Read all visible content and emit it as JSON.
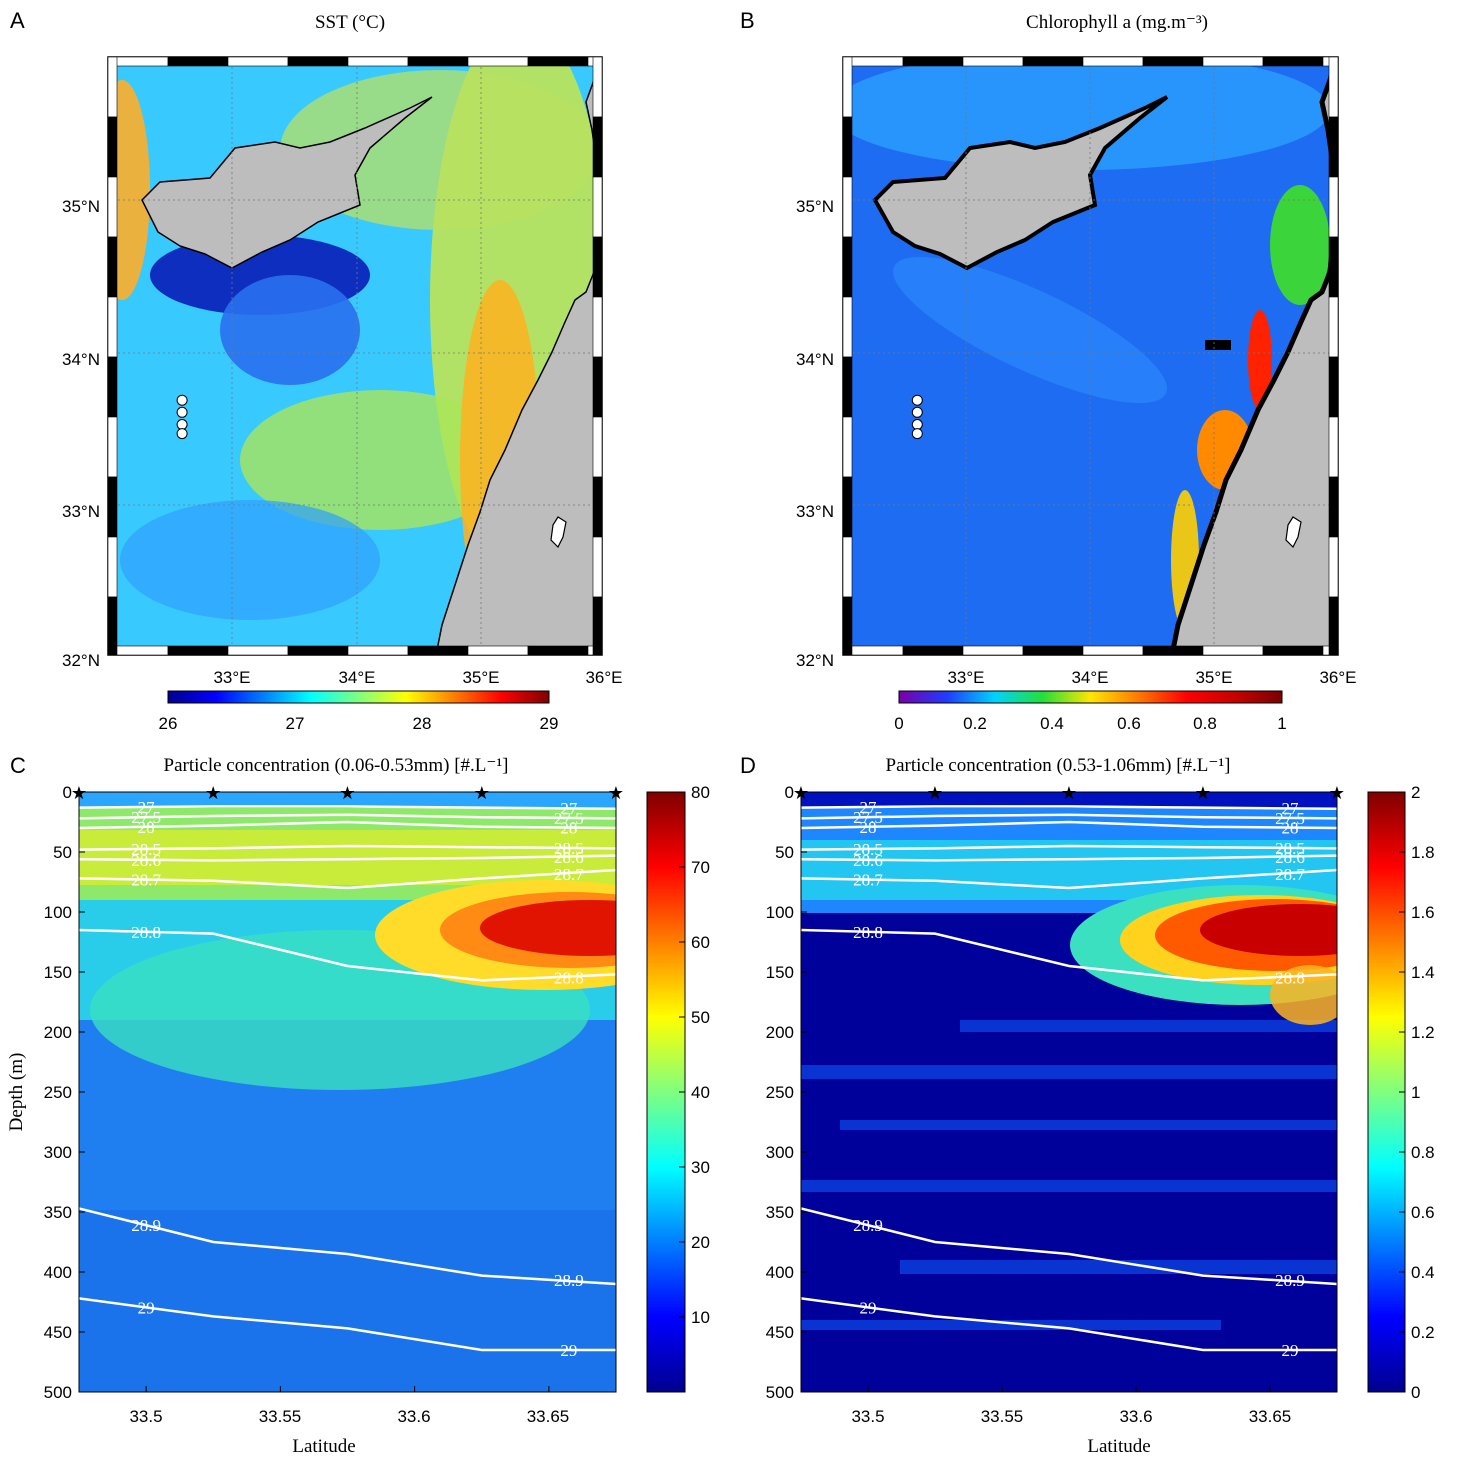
{
  "colors": {
    "land": "#bdbdbd",
    "contour_line": "#ffffff",
    "jet": [
      "#00008f",
      "#0000ff",
      "#007fff",
      "#00ffff",
      "#7fff7f",
      "#ffff00",
      "#ff7f00",
      "#ff0000",
      "#7f0000"
    ],
    "chl_scale": [
      "#7a00a8",
      "#1f3cff",
      "#00d2ff",
      "#22e038",
      "#ffe600",
      "#ff7a00",
      "#ff0000",
      "#c80000",
      "#7a0000"
    ]
  },
  "panels": {
    "A": {
      "letter": "A",
      "title": "SST (°C)",
      "y_ticks": [
        "35°N",
        "34°N",
        "33°N",
        "32°N"
      ],
      "x_ticks": [
        "33°E",
        "34°E",
        "35°E",
        "36°E"
      ],
      "colorbar": {
        "ticks": [
          "26",
          "27",
          "28",
          "29"
        ],
        "range": [
          26,
          29
        ]
      }
    },
    "B": {
      "letter": "B",
      "title": "Chlorophyll a (mg.m⁻³)",
      "y_ticks": [
        "35°N",
        "34°N",
        "33°N",
        "32°N"
      ],
      "x_ticks": [
        "33°E",
        "34°E",
        "35°E",
        "36°E"
      ],
      "colorbar": {
        "ticks": [
          "0",
          "0.2",
          "0.4",
          "0.6",
          "0.8",
          "1"
        ],
        "range": [
          0,
          1
        ]
      }
    },
    "C": {
      "letter": "C",
      "title": "Particle concentration (0.06-0.53mm) [#.L⁻¹]",
      "ylabel": "Depth (m)",
      "xlabel": "Latitude",
      "y_ticks": [
        "0",
        "50",
        "100",
        "150",
        "200",
        "250",
        "300",
        "350",
        "400",
        "450",
        "500"
      ],
      "x_ticks": [
        "33.5",
        "33.55",
        "33.6",
        "33.65"
      ],
      "colorbar_ticks": [
        "80",
        "70",
        "60",
        "50",
        "40",
        "30",
        "20",
        "10"
      ],
      "contour_labels": [
        "27",
        "27.5",
        "28",
        "28.5",
        "28.6",
        "28.7",
        "28.8",
        "28.9",
        "29"
      ]
    },
    "D": {
      "letter": "D",
      "title": "Particle concentration (0.53-1.06mm) [#.L⁻¹]",
      "xlabel": "Latitude",
      "y_ticks": [
        "0",
        "50",
        "100",
        "150",
        "200",
        "250",
        "300",
        "350",
        "400",
        "450",
        "500"
      ],
      "x_ticks": [
        "33.5",
        "33.55",
        "33.6",
        "33.65"
      ],
      "colorbar_ticks": [
        "2",
        "1.8",
        "1.6",
        "1.4",
        "1.2",
        "1",
        "0.8",
        "0.6",
        "0.4",
        "0.2",
        "0"
      ],
      "contour_labels": [
        "27",
        "27.5",
        "28",
        "28.5",
        "28.6",
        "28.7",
        "28.8",
        "28.9",
        "29"
      ]
    }
  },
  "chart_data": [
    {
      "panel": "A",
      "type": "heatmap",
      "title": "SST (°C)",
      "xlim": [
        32,
        36
      ],
      "ylim": [
        32,
        36
      ],
      "color_range": [
        26,
        29
      ],
      "stations": {
        "lon": 32.6,
        "lat": [
          33.68,
          33.6,
          33.52,
          33.46
        ]
      }
    },
    {
      "panel": "B",
      "type": "heatmap",
      "title": "Chlorophyll a (mg.m-3)",
      "xlim": [
        32,
        36
      ],
      "ylim": [
        32,
        36
      ],
      "color_range": [
        0,
        1
      ],
      "stations": {
        "lon": 32.6,
        "lat": [
          33.68,
          33.6,
          33.52,
          33.46
        ]
      }
    },
    {
      "panel": "C",
      "type": "heatmap",
      "title": "Particle concentration (0.06-0.53mm) [#.L-1]",
      "xlabel": "Latitude",
      "ylabel": "Depth (m)",
      "xlim": [
        33.475,
        33.675
      ],
      "ylim": [
        500,
        0
      ],
      "color_range": [
        0,
        80
      ],
      "station_latitudes": [
        33.475,
        33.525,
        33.575,
        33.625,
        33.675
      ],
      "isopycnals": [
        {
          "label": "27",
          "depth": [
            13,
            12,
            12,
            13,
            14
          ]
        },
        {
          "label": "27.5",
          "depth": [
            22,
            20,
            19,
            21,
            22
          ]
        },
        {
          "label": "28",
          "depth": [
            30,
            28,
            25,
            29,
            30
          ]
        },
        {
          "label": "28.5",
          "depth": [
            48,
            47,
            45,
            46,
            47
          ]
        },
        {
          "label": "28.6",
          "depth": [
            56,
            57,
            56,
            55,
            53
          ]
        },
        {
          "label": "28.7",
          "depth": [
            72,
            74,
            80,
            72,
            65
          ]
        },
        {
          "label": "28.8",
          "depth": [
            115,
            118,
            145,
            157,
            152
          ]
        },
        {
          "label": "28.9",
          "depth": [
            347,
            375,
            385,
            403,
            410
          ]
        },
        {
          "label": "29",
          "depth": [
            422,
            437,
            447,
            465,
            465
          ]
        }
      ]
    },
    {
      "panel": "D",
      "type": "heatmap",
      "title": "Particle concentration (0.53-1.06mm) [#.L-1]",
      "xlabel": "Latitude",
      "xlim": [
        33.475,
        33.675
      ],
      "ylim": [
        500,
        0
      ],
      "color_range": [
        0,
        2
      ],
      "station_latitudes": [
        33.475,
        33.525,
        33.575,
        33.625,
        33.675
      ],
      "isopycnals": [
        {
          "label": "27",
          "depth": [
            13,
            12,
            12,
            13,
            14
          ]
        },
        {
          "label": "27.5",
          "depth": [
            22,
            20,
            19,
            21,
            22
          ]
        },
        {
          "label": "28",
          "depth": [
            30,
            28,
            25,
            29,
            30
          ]
        },
        {
          "label": "28.5",
          "depth": [
            48,
            47,
            45,
            46,
            47
          ]
        },
        {
          "label": "28.6",
          "depth": [
            56,
            57,
            56,
            55,
            53
          ]
        },
        {
          "label": "28.7",
          "depth": [
            72,
            74,
            80,
            72,
            65
          ]
        },
        {
          "label": "28.8",
          "depth": [
            115,
            118,
            145,
            157,
            152
          ]
        },
        {
          "label": "28.9",
          "depth": [
            347,
            375,
            385,
            403,
            410
          ]
        },
        {
          "label": "29",
          "depth": [
            422,
            437,
            447,
            465,
            465
          ]
        }
      ]
    }
  ]
}
